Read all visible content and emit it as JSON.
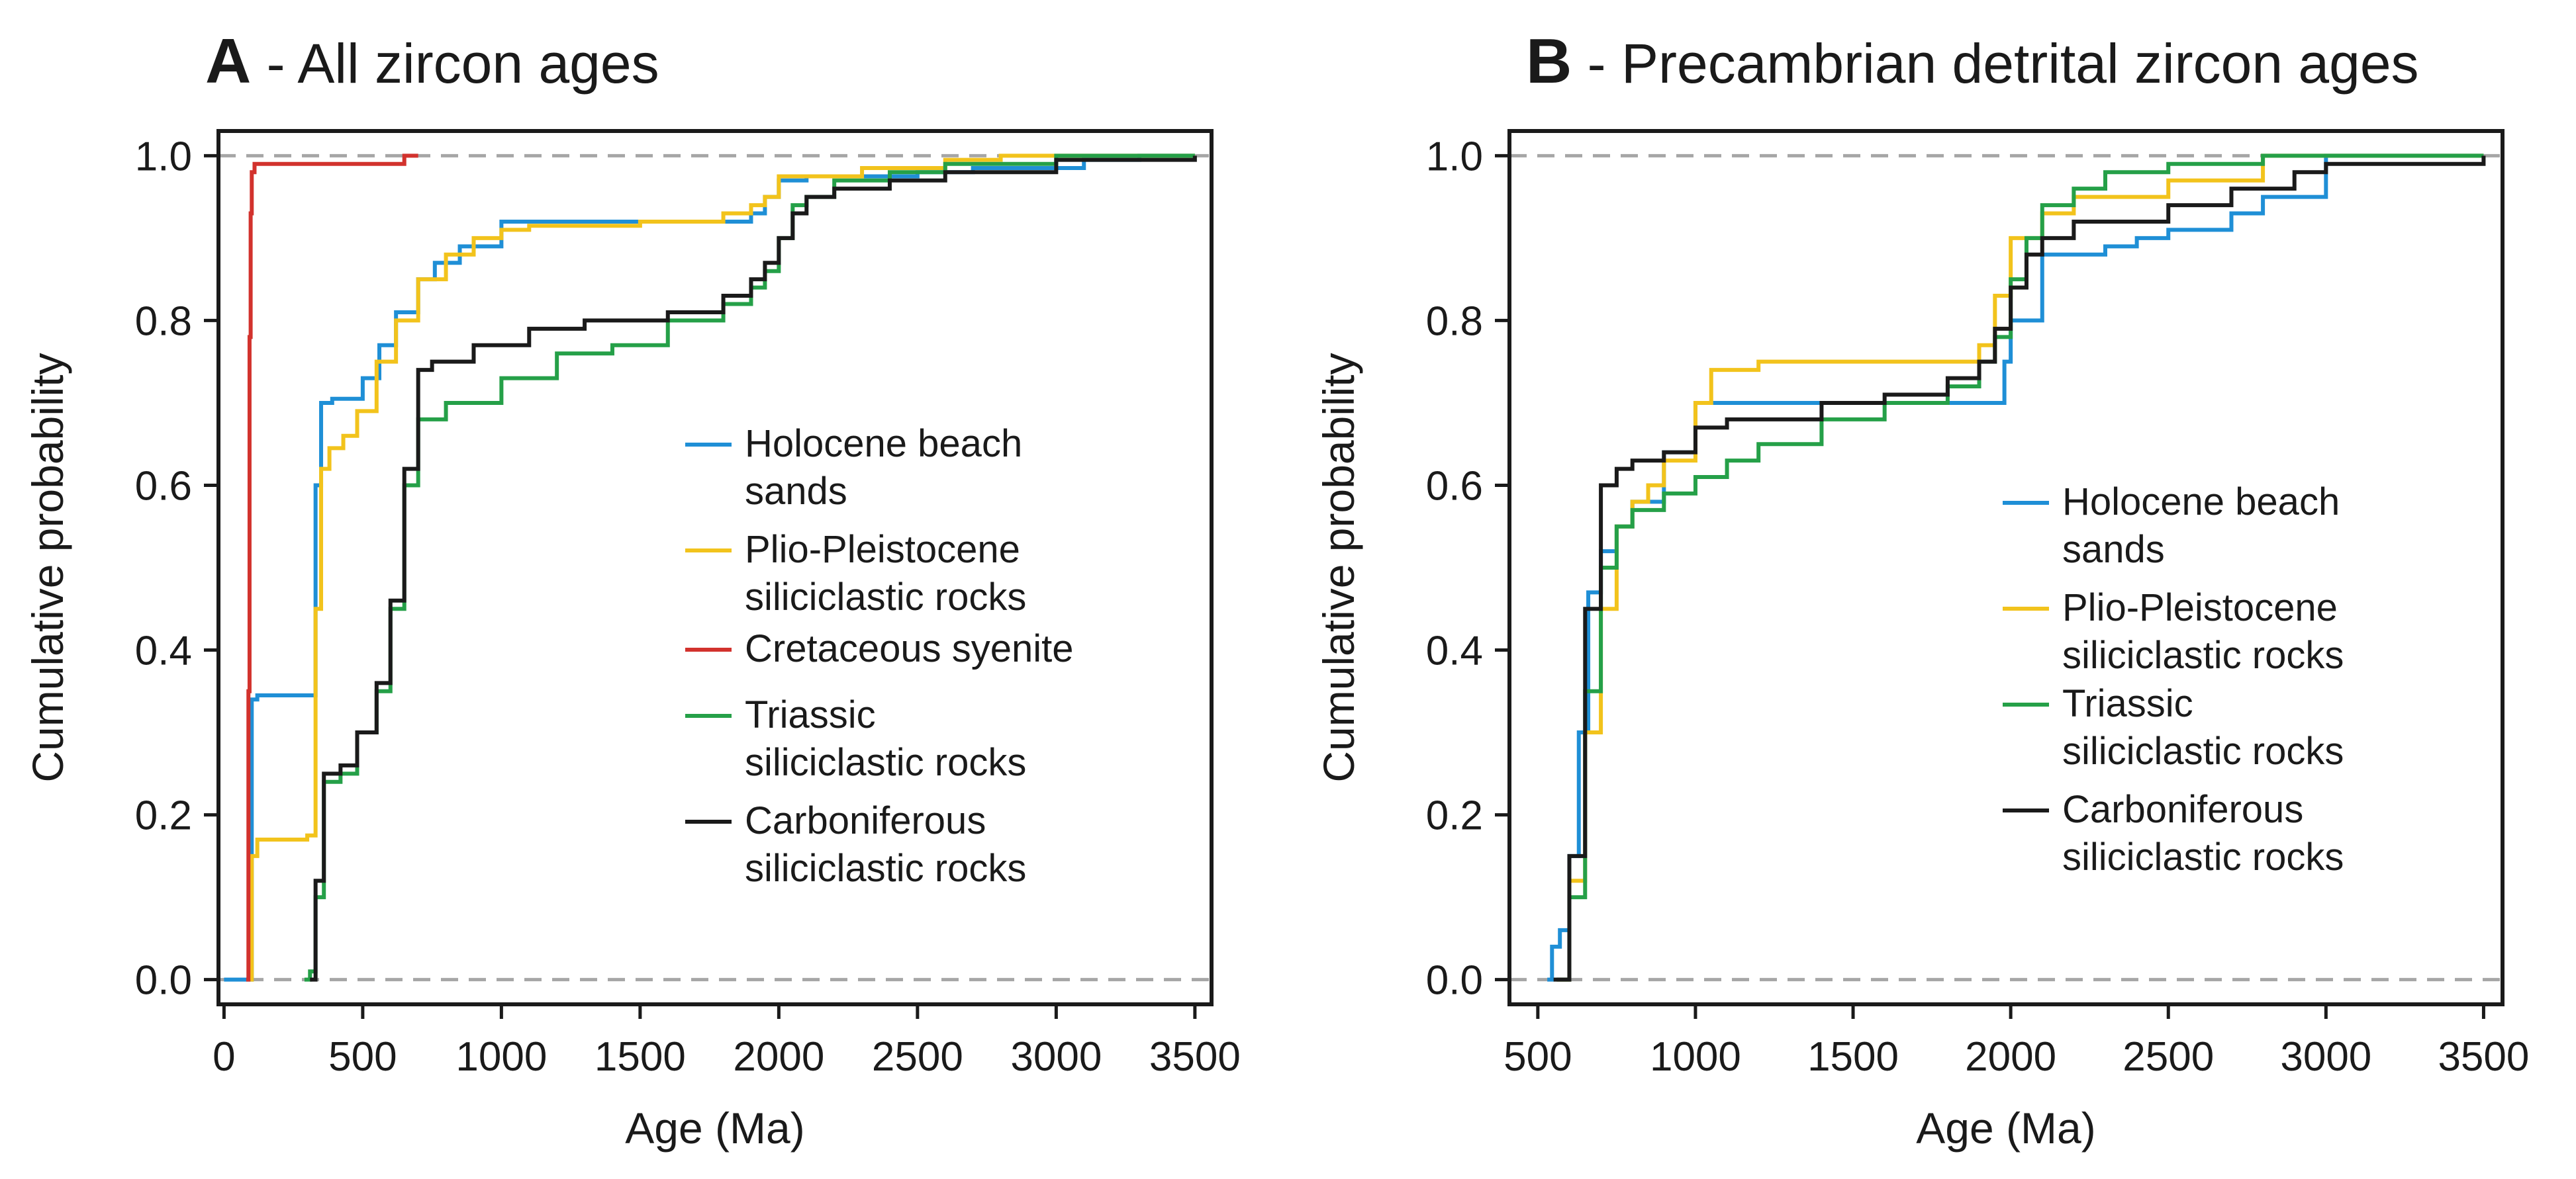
{
  "chart_data": [
    {
      "type": "line",
      "panel_letter": "A",
      "title": "- All zircon ages",
      "xlabel": "Age (Ma)",
      "ylabel": "Cumulative probability",
      "xlim": [
        -20,
        3560
      ],
      "ylim": [
        -0.03,
        1.03
      ],
      "xticks": [
        0,
        500,
        1000,
        1500,
        2000,
        2500,
        3000,
        3500
      ],
      "yticks": [
        0.0,
        0.2,
        0.4,
        0.6,
        0.8,
        1.0
      ],
      "reference_lines": [
        0.0,
        1.0
      ],
      "grid": false,
      "legend_placement": "right",
      "series": [
        {
          "name": "Holocene beach sands",
          "color": "#1f8fd6",
          "x": [
            0,
            95,
            100,
            120,
            310,
            330,
            350,
            390,
            450,
            500,
            560,
            620,
            700,
            760,
            850,
            1000,
            1500,
            1800,
            1900,
            1950,
            2000,
            2100,
            2500,
            2700,
            3000,
            3100,
            3300,
            3500
          ],
          "y": [
            0,
            0,
            0.34,
            0.345,
            0.345,
            0.6,
            0.7,
            0.705,
            0.705,
            0.73,
            0.77,
            0.81,
            0.85,
            0.87,
            0.89,
            0.92,
            0.92,
            0.92,
            0.93,
            0.95,
            0.97,
            0.975,
            0.98,
            0.985,
            0.985,
            0.995,
            1.0,
            1.0
          ]
        },
        {
          "name": "Plio-Pleistocene siliciclastic rocks",
          "color": "#f2c31c",
          "x": [
            95,
            100,
            120,
            150,
            300,
            330,
            350,
            380,
            430,
            480,
            550,
            620,
            700,
            800,
            900,
            1000,
            1100,
            1500,
            1800,
            1900,
            1950,
            2000,
            2300,
            2600,
            2800,
            3000,
            3500
          ],
          "y": [
            0,
            0.15,
            0.17,
            0.17,
            0.175,
            0.45,
            0.62,
            0.645,
            0.66,
            0.69,
            0.75,
            0.8,
            0.85,
            0.88,
            0.9,
            0.91,
            0.915,
            0.92,
            0.93,
            0.94,
            0.95,
            0.975,
            0.985,
            0.995,
            1.0,
            1.0,
            1.0
          ]
        },
        {
          "name": "Cretaceous syenite",
          "color": "#d2322d",
          "x": [
            80,
            88,
            92,
            96,
            100,
            110,
            300,
            650,
            700
          ],
          "y": [
            0,
            0.35,
            0.78,
            0.93,
            0.98,
            0.99,
            0.99,
            1.0,
            1.0
          ]
        },
        {
          "name": "Triassic siliciclastic rocks",
          "color": "#25a048",
          "x": [
            290,
            310,
            330,
            360,
            420,
            480,
            550,
            600,
            650,
            700,
            800,
            1000,
            1200,
            1400,
            1600,
            1800,
            1900,
            1950,
            2000,
            2050,
            2100,
            2200,
            2400,
            2600,
            3000,
            3500
          ],
          "y": [
            0,
            0.01,
            0.1,
            0.24,
            0.25,
            0.3,
            0.35,
            0.45,
            0.6,
            0.68,
            0.7,
            0.73,
            0.76,
            0.77,
            0.8,
            0.82,
            0.84,
            0.86,
            0.9,
            0.94,
            0.95,
            0.97,
            0.98,
            0.99,
            1.0,
            1.0
          ]
        },
        {
          "name": "Carboniferous siliciclastic rocks",
          "color": "#1a1a1a",
          "x": [
            310,
            330,
            360,
            420,
            480,
            550,
            600,
            650,
            700,
            750,
            900,
            1100,
            1300,
            1600,
            1800,
            1900,
            1950,
            2000,
            2050,
            2100,
            2200,
            2400,
            2600,
            3000,
            3500
          ],
          "y": [
            0,
            0.12,
            0.25,
            0.26,
            0.3,
            0.36,
            0.46,
            0.62,
            0.74,
            0.75,
            0.77,
            0.79,
            0.8,
            0.81,
            0.83,
            0.85,
            0.87,
            0.9,
            0.93,
            0.95,
            0.96,
            0.97,
            0.98,
            0.995,
            1.0
          ]
        }
      ]
    },
    {
      "type": "line",
      "panel_letter": "B",
      "title": "- Precambrian detrital zircon ages",
      "xlabel": "Age (Ma)",
      "ylabel": "Cumulative probability",
      "xlim": [
        410,
        3560
      ],
      "ylim": [
        -0.03,
        1.03
      ],
      "xticks": [
        500,
        1000,
        1500,
        2000,
        2500,
        3000,
        3500
      ],
      "yticks": [
        0.0,
        0.2,
        0.4,
        0.6,
        0.8,
        1.0
      ],
      "reference_lines": [
        0.0,
        1.0
      ],
      "grid": false,
      "legend_placement": "right",
      "series": [
        {
          "name": "Holocene beach sands",
          "color": "#1f8fd6",
          "x": [
            530,
            545,
            570,
            600,
            630,
            660,
            700,
            750,
            800,
            900,
            1000,
            1100,
            1500,
            1900,
            1950,
            1980,
            2000,
            2100,
            2300,
            2400,
            2500,
            2700,
            2800,
            2950,
            3000,
            3500
          ],
          "y": [
            0,
            0.04,
            0.06,
            0.15,
            0.3,
            0.47,
            0.52,
            0.55,
            0.58,
            0.64,
            0.7,
            0.7,
            0.7,
            0.7,
            0.7,
            0.75,
            0.8,
            0.88,
            0.89,
            0.9,
            0.91,
            0.93,
            0.95,
            0.95,
            1.0,
            1.0
          ]
        },
        {
          "name": "Plio-Pleistocene siliciclastic rocks",
          "color": "#f2c31c",
          "x": [
            560,
            600,
            650,
            700,
            750,
            800,
            850,
            900,
            1000,
            1050,
            1200,
            1500,
            1800,
            1900,
            1950,
            2000,
            2100,
            2200,
            2500,
            2800,
            3500
          ],
          "y": [
            0,
            0.12,
            0.3,
            0.45,
            0.55,
            0.58,
            0.6,
            0.63,
            0.7,
            0.74,
            0.75,
            0.75,
            0.75,
            0.77,
            0.83,
            0.9,
            0.93,
            0.95,
            0.97,
            1.0,
            1.0
          ]
        },
        {
          "name": "Triassic siliciclastic rocks",
          "color": "#25a048",
          "x": [
            560,
            600,
            650,
            700,
            750,
            800,
            900,
            1000,
            1100,
            1200,
            1400,
            1600,
            1800,
            1900,
            1950,
            2000,
            2050,
            2100,
            2200,
            2300,
            2500,
            2800,
            3500
          ],
          "y": [
            0,
            0.1,
            0.35,
            0.5,
            0.55,
            0.57,
            0.59,
            0.61,
            0.63,
            0.65,
            0.68,
            0.7,
            0.72,
            0.75,
            0.78,
            0.85,
            0.9,
            0.94,
            0.96,
            0.98,
            0.99,
            1.0,
            1.0
          ]
        },
        {
          "name": "Carboniferous siliciclastic rocks",
          "color": "#1a1a1a",
          "x": [
            550,
            600,
            650,
            700,
            750,
            800,
            900,
            1000,
            1100,
            1400,
            1600,
            1800,
            1900,
            1950,
            2000,
            2050,
            2100,
            2200,
            2500,
            2700,
            2900,
            3000,
            3500
          ],
          "y": [
            0,
            0.15,
            0.45,
            0.6,
            0.62,
            0.63,
            0.64,
            0.67,
            0.68,
            0.7,
            0.71,
            0.73,
            0.75,
            0.79,
            0.84,
            0.88,
            0.9,
            0.92,
            0.94,
            0.96,
            0.98,
            0.99,
            1.0
          ]
        }
      ]
    }
  ]
}
